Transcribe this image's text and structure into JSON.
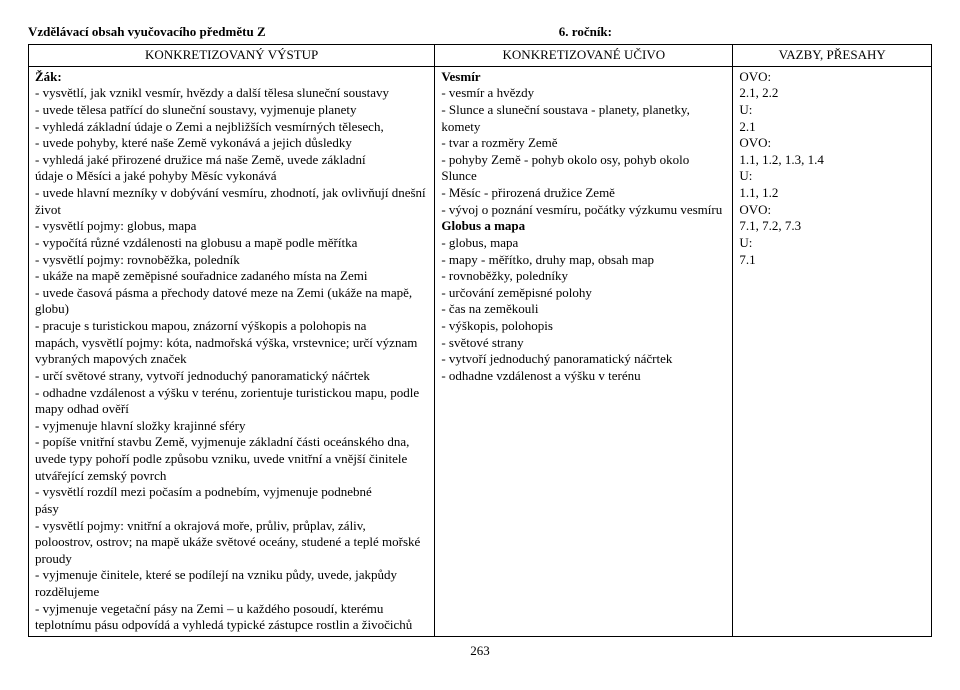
{
  "header": {
    "subject_line_left": "Vzdělávací obsah vyučovacího předmětu Z",
    "subject_line_right": "6. ročník:"
  },
  "table": {
    "headers": {
      "col1": "KONKRETIZOVANÝ VÝSTUP",
      "col2": "KONKRETIZOVANÉ UČIVO",
      "col3": "VAZBY, PŘESAHY"
    },
    "col1": {
      "lead": "Žák:",
      "lines": [
        "- vysvětlí, jak vznikl vesmír, hvězdy a další tělesa sluneční soustavy",
        "- uvede tělesa patřící do sluneční soustavy, vyjmenuje planety",
        "- vyhledá základní údaje o Zemi a nejbližších vesmírných tělesech,",
        "- uvede pohyby, které naše Země vykonává a jejich důsledky",
        "- vyhledá jaké přirozené družice má naše Země, uvede základní",
        "údaje o Měsíci a jaké pohyby Měsíc vykonává",
        "- uvede hlavní mezníky v dobývání vesmíru, zhodnotí, jak ovlivňují dnešní život",
        "- vysvětlí pojmy: globus, mapa",
        "- vypočítá různé vzdálenosti na globusu a mapě podle měřítka",
        "- vysvětlí pojmy: rovnoběžka, poledník",
        "- ukáže na mapě zeměpisné souřadnice zadaného místa na Zemi",
        "- uvede časová pásma a přechody datové meze na Zemi (ukáže na mapě, globu)",
        "- pracuje s turistickou mapou, znázorní výškopis a polohopis na",
        "mapách, vysvětlí pojmy: kóta, nadmořská výška, vrstevnice; určí význam vybraných mapových značek",
        "- určí světové strany, vytvoří jednoduchý panoramatický náčrtek",
        "- odhadne vzdálenost a výšku v terénu, zorientuje turistickou mapu, podle mapy odhad ověří",
        "- vyjmenuje hlavní složky krajinné sféry",
        "- popíše vnitřní stavbu Země, vyjmenuje základní části oceánského dna, uvede typy pohoří podle způsobu vzniku, uvede vnitřní a vnější činitele utvářející zemský povrch",
        "- vysvětlí rozdíl mezi počasím a podnebím, vyjmenuje podnebné",
        "pásy",
        "- vysvětlí pojmy: vnitřní a okrajová moře, průliv, průplav, záliv,",
        "poloostrov, ostrov; na mapě ukáže světové oceány, studené a teplé mořské proudy",
        "- vyjmenuje činitele, které se podílejí na vzniku půdy, uvede, jakpůdy rozdělujeme",
        "- vyjmenuje vegetační pásy na Zemi – u každého posoudí, kterému teplotnímu pásu odpovídá a vyhledá typické zástupce rostlin a živočichů"
      ]
    },
    "col2": {
      "lead1": "Vesmír",
      "lines1": [
        "- vesmír a hvězdy",
        "- Slunce a sluneční soustava - planety, planetky, komety",
        "- tvar a rozměry Země",
        "- pohyby Země - pohyb okolo osy, pohyb okolo Slunce",
        "- Měsíc - přirozená družice Země",
        "- vývoj o poznání vesmíru, počátky výzkumu vesmíru"
      ],
      "lead2": "Globus a mapa",
      "lines2": [
        "- globus, mapa",
        "- mapy - měřítko, druhy map, obsah map",
        "- rovnoběžky, poledníky",
        "- určování zeměpisné polohy",
        "- čas na zeměkouli",
        "- výškopis, polohopis",
        "- světové strany",
        "- vytvoří jednoduchý panoramatický náčrtek",
        "- odhadne vzdálenost a výšku v terénu"
      ]
    },
    "col3": {
      "items": [
        {
          "label": "OVO:",
          "value": "2.1, 2.2"
        },
        {
          "label": "U:",
          "value": "2.1"
        },
        {
          "label": "OVO:",
          "value": "1.1, 1.2, 1.3, 1.4"
        },
        {
          "label": "U:",
          "value": "1.1, 1.2"
        },
        {
          "label": "OVO:",
          "value": "7.1, 7.2, 7.3"
        },
        {
          "label": "U:",
          "value": "7.1"
        }
      ]
    }
  },
  "page_number": "263"
}
